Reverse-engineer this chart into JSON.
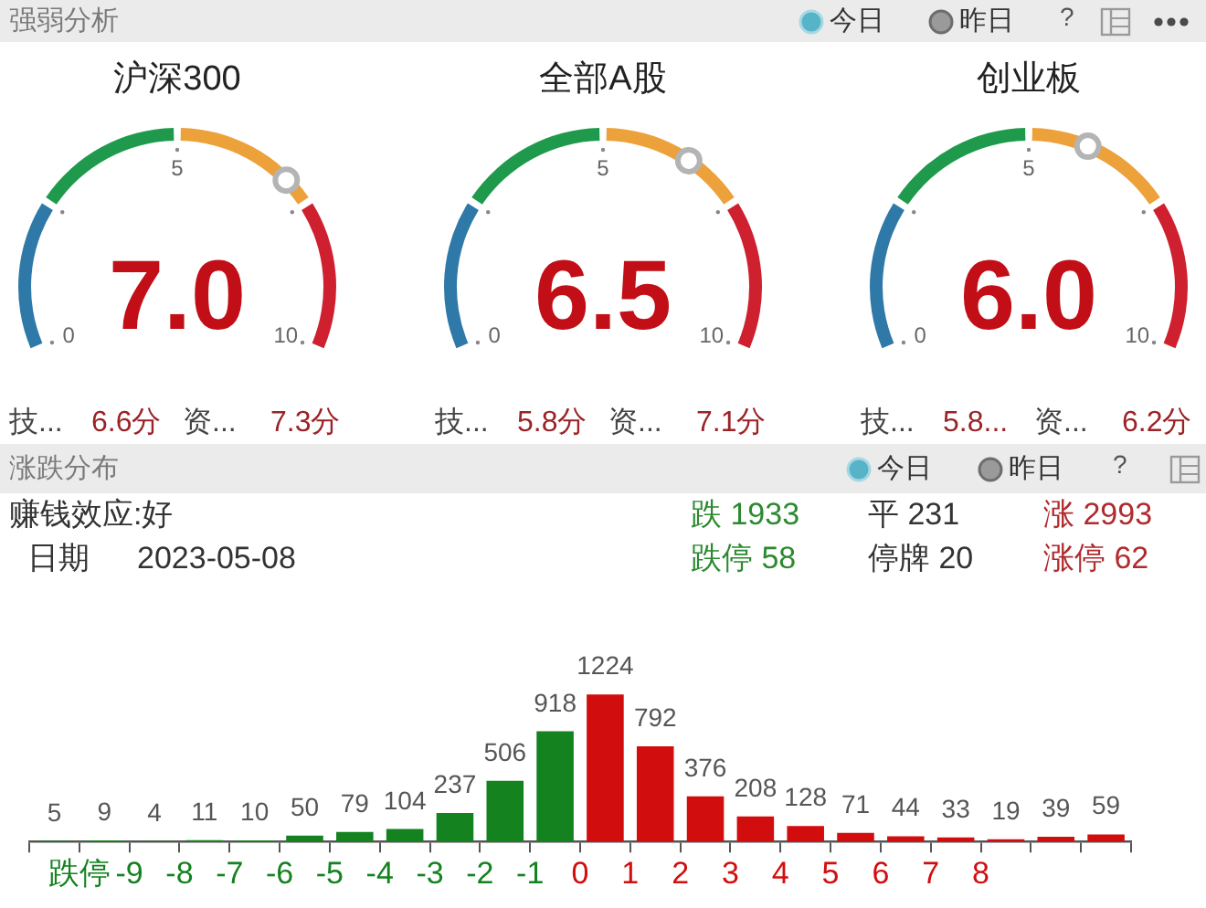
{
  "chart_data": [
    {
      "type": "other",
      "title": "强弱分析",
      "annotations": [
        "今日",
        "昨日",
        "?"
      ]
    },
    {
      "type": "other",
      "title": "沪深300",
      "annotations": [
        "7.0",
        "0",
        "5",
        "10",
        "技...",
        "6.6分",
        "资...",
        "7.3分"
      ]
    },
    {
      "type": "other",
      "title": "全部A股",
      "annotations": [
        "6.5",
        "0",
        "5",
        "10",
        "技...",
        "5.8分",
        "资...",
        "7.1分"
      ]
    },
    {
      "type": "other",
      "title": "创业板",
      "annotations": [
        "6.0",
        "0",
        "5",
        "10",
        "技...",
        "5.8...",
        "资...",
        "6.2分"
      ]
    },
    {
      "type": "other",
      "title": "涨跌分布",
      "annotations": [
        "今日",
        "昨日",
        "?",
        "赚钱效应:好",
        "日期",
        "2023-05-08",
        "跌 1933",
        "平 231",
        "涨 2993",
        "跌停 58",
        "停牌 20",
        "涨停 62"
      ]
    },
    {
      "type": "bar",
      "categories": [
        null,
        "跌停",
        "-9",
        "-8",
        "-7",
        "-6",
        "-5",
        "-4",
        "-3",
        "-2",
        "-1",
        "0",
        "1",
        "2",
        "3",
        "4",
        "5",
        "6",
        "7",
        "8",
        null,
        null
      ],
      "values": [
        5,
        9,
        4,
        11,
        10,
        50,
        79,
        104,
        237,
        506,
        918,
        1224,
        792,
        376,
        208,
        128,
        71,
        44,
        33,
        19,
        39,
        59
      ],
      "colors": [
        "#13821f",
        "#13821f",
        "#13821f",
        "#13821f",
        "#13821f",
        "#13821f",
        "#13821f",
        "#13821f",
        "#13821f",
        "#13821f",
        "#13821f",
        "#d20d0d",
        "#d20d0d",
        "#d20d0d",
        "#d20d0d",
        "#d20d0d",
        "#d20d0d",
        "#d20d0d",
        "#d20d0d",
        "#d20d0d",
        "#d20d0d",
        "#d20d0d"
      ],
      "data_labels": true
    }
  ]
}
